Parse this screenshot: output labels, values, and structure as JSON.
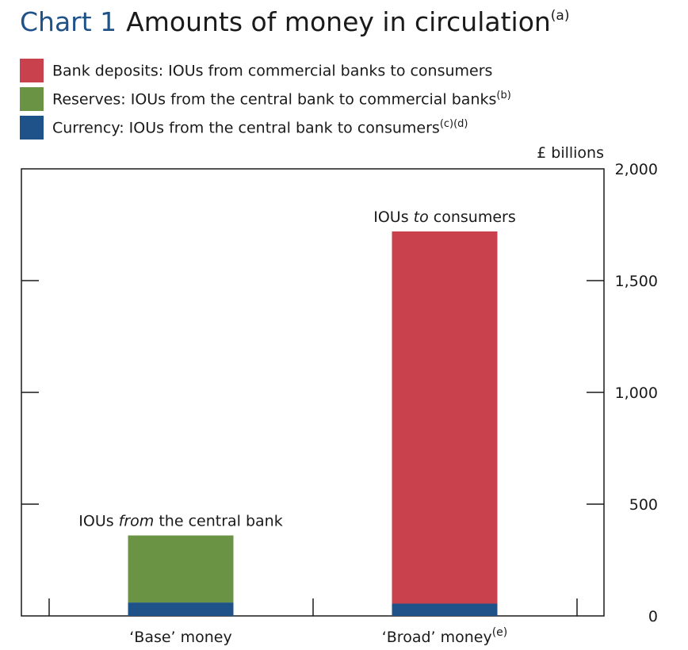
{
  "title": {
    "number": "Chart 1",
    "text": "Amounts of money in circulation",
    "note": "(a)"
  },
  "legend": [
    {
      "label": "Bank deposits:  IOUs from commercial banks to consumers",
      "note": "",
      "color": "#c8414c"
    },
    {
      "label": "Reserves:  IOUs from the central bank to commercial banks",
      "note": "(b)",
      "color": "#6a9444"
    },
    {
      "label": "Currency:  IOUs from the central bank to consumers",
      "note": "(c)(d)",
      "color": "#1f5289"
    }
  ],
  "chart_data": {
    "type": "bar",
    "stacked": true,
    "unit": "£ billions",
    "ylim": [
      0,
      2000
    ],
    "yticks": [
      "0",
      "500",
      "1,000",
      "1,500",
      "2,000"
    ],
    "ytick_values": [
      0,
      500,
      1000,
      1500,
      2000
    ],
    "axis_side": "right",
    "categories": [
      "‘Base’ money",
      "‘Broad’ money"
    ],
    "category_notes": [
      "",
      "(e)"
    ],
    "series": [
      {
        "name": "Currency",
        "color": "#1f5289",
        "values": [
          60,
          55
        ]
      },
      {
        "name": "Reserves",
        "color": "#6a9444",
        "values": [
          300,
          0
        ]
      },
      {
        "name": "Bank deposits",
        "color": "#c8414c",
        "values": [
          0,
          1665
        ]
      }
    ],
    "annotations": [
      {
        "category": 0,
        "pre": "IOUs ",
        "em": "from",
        "post": " the central bank"
      },
      {
        "category": 1,
        "pre": "IOUs ",
        "em": "to",
        "post": " consumers"
      }
    ]
  }
}
